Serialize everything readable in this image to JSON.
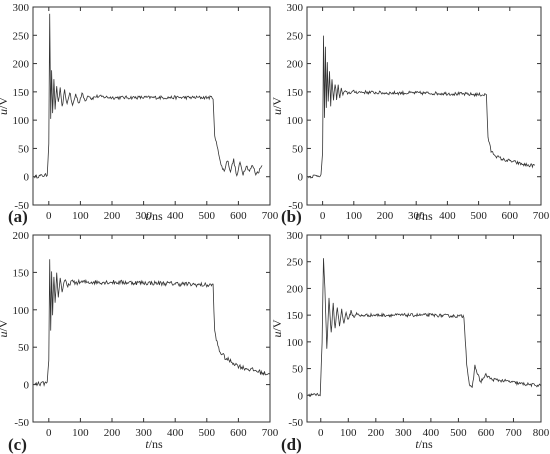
{
  "figure": {
    "panels": [
      {
        "label": "(a)",
        "xlabel_var": "t",
        "xlabel_unit": "/ns",
        "ylabel_var": "u",
        "ylabel_unit": "/V"
      },
      {
        "label": "(b)",
        "xlabel_var": "t",
        "xlabel_unit": "/ns",
        "ylabel_var": "u",
        "ylabel_unit": "/V"
      },
      {
        "label": "(c)",
        "xlabel_var": "t",
        "xlabel_unit": "/ns",
        "ylabel_var": "u",
        "ylabel_unit": "/V"
      },
      {
        "label": "(d)",
        "xlabel_var": "t",
        "xlabel_unit": "/ns",
        "ylabel_var": "u",
        "ylabel_unit": "/V"
      }
    ]
  },
  "chart_data": [
    {
      "type": "line",
      "panel": "(a)",
      "xlabel": "t/ns",
      "ylabel": "u/V",
      "xlim": [
        -50,
        700
      ],
      "ylim": [
        -50,
        300
      ],
      "xticks": [
        0,
        100,
        200,
        300,
        400,
        500,
        600,
        700
      ],
      "xtick_labels": [
        "0",
        "100",
        "200",
        "300",
        "400",
        "500",
        "600",
        "700"
      ],
      "yticks": [
        -50,
        0,
        50,
        100,
        150,
        200,
        250,
        300
      ],
      "ytick_labels": [
        "-50",
        "0",
        "50",
        "100",
        "150",
        "200",
        "250",
        "300"
      ],
      "grid": false,
      "line_color": "#333333",
      "series": [
        {
          "x": [
            -45,
            -5,
            0,
            3,
            6,
            9,
            12,
            16,
            20,
            25,
            30,
            36,
            42,
            50,
            58,
            66,
            75,
            85,
            95,
            105,
            115,
            125,
            135,
            150,
            200,
            300,
            400,
            500,
            520,
            525,
            535,
            545,
            555,
            565,
            575,
            585,
            595,
            605,
            615,
            625,
            635,
            645,
            655,
            665,
            675
          ],
          "y": [
            0,
            3,
            60,
            290,
            100,
            190,
            110,
            170,
            120,
            160,
            130,
            155,
            122,
            152,
            128,
            150,
            125,
            146,
            130,
            147,
            134,
            145,
            138,
            142,
            140,
            140,
            140,
            140,
            140,
            70,
            50,
            20,
            10,
            30,
            10,
            30,
            0,
            25,
            5,
            20,
            10,
            20,
            5,
            10,
            20
          ]
        }
      ]
    },
    {
      "type": "line",
      "panel": "(b)",
      "xlabel": "t/ns",
      "ylabel": "u/V",
      "xlim": [
        -50,
        700
      ],
      "ylim": [
        -50,
        300
      ],
      "xticks": [
        0,
        100,
        200,
        300,
        400,
        500,
        600,
        700
      ],
      "xtick_labels": [
        "0",
        "100",
        "200",
        "300",
        "400",
        "500",
        "600",
        "700"
      ],
      "yticks": [
        -50,
        0,
        50,
        100,
        150,
        200,
        250,
        300
      ],
      "ytick_labels": [
        "-50",
        "0",
        "50",
        "100",
        "150",
        "200",
        "250",
        "300"
      ],
      "grid": false,
      "line_color": "#333333",
      "series": [
        {
          "x": [
            -45,
            -5,
            0,
            3,
            6,
            9,
            12,
            15,
            18,
            22,
            26,
            30,
            35,
            40,
            45,
            50,
            55,
            60,
            65,
            70,
            80,
            100,
            200,
            300,
            400,
            500,
            525,
            530,
            540,
            550,
            560,
            580,
            600,
            620,
            640,
            660,
            680
          ],
          "y": [
            0,
            3,
            40,
            250,
            105,
            230,
            120,
            200,
            130,
            185,
            125,
            175,
            135,
            165,
            138,
            160,
            140,
            155,
            145,
            150,
            148,
            150,
            148,
            148,
            147,
            145,
            145,
            70,
            45,
            40,
            35,
            30,
            28,
            25,
            22,
            20,
            20
          ]
        }
      ]
    },
    {
      "type": "line",
      "panel": "(c)",
      "xlabel": "t/ns",
      "ylabel": "u/V",
      "xlim": [
        -50,
        700
      ],
      "ylim": [
        -50,
        200
      ],
      "xticks": [
        0,
        100,
        200,
        300,
        400,
        500,
        600,
        700
      ],
      "xtick_labels": [
        "0",
        "100",
        "200",
        "300",
        "400",
        "500",
        "600",
        "700"
      ],
      "yticks": [
        -50,
        0,
        50,
        100,
        150,
        200
      ],
      "ytick_labels": [
        "-50",
        "0",
        "50",
        "100",
        "150",
        "200"
      ],
      "grid": false,
      "line_color": "#333333",
      "series": [
        {
          "x": [
            -45,
            -5,
            0,
            3,
            6,
            9,
            12,
            16,
            20,
            25,
            30,
            36,
            42,
            50,
            60,
            70,
            80,
            100,
            200,
            300,
            400,
            500,
            520,
            525,
            530,
            540,
            550,
            560,
            580,
            600,
            620,
            640,
            660,
            680,
            700
          ],
          "y": [
            0,
            2,
            30,
            165,
            70,
            150,
            95,
            145,
            110,
            148,
            118,
            142,
            125,
            140,
            130,
            138,
            136,
            137,
            137,
            136,
            135,
            133,
            133,
            70,
            60,
            45,
            40,
            35,
            30,
            25,
            22,
            20,
            18,
            15,
            15
          ]
        }
      ]
    },
    {
      "type": "line",
      "panel": "(d)",
      "xlabel": "t/ns",
      "ylabel": "u/V",
      "xlim": [
        -50,
        800
      ],
      "ylim": [
        -50,
        300
      ],
      "xticks": [
        0,
        100,
        200,
        300,
        400,
        500,
        600,
        700,
        800
      ],
      "xtick_labels": [
        "0",
        "100",
        "200",
        "300",
        "400",
        "500",
        "600",
        "700",
        "800"
      ],
      "yticks": [
        -50,
        0,
        50,
        100,
        150,
        200,
        250,
        300
      ],
      "ytick_labels": [
        "-50",
        "0",
        "50",
        "100",
        "150",
        "200",
        "250",
        "300"
      ],
      "grid": false,
      "line_color": "#333333",
      "series": [
        {
          "x": [
            -45,
            -2,
            5,
            10,
            15,
            22,
            30,
            38,
            45,
            52,
            60,
            68,
            76,
            84,
            92,
            100,
            110,
            120,
            130,
            140,
            160,
            200,
            300,
            400,
            500,
            520,
            530,
            540,
            550,
            560,
            570,
            580,
            600,
            620,
            650,
            680,
            720,
            760,
            800
          ],
          "y": [
            0,
            2,
            100,
            258,
            200,
            90,
            180,
            115,
            170,
            125,
            165,
            130,
            160,
            135,
            155,
            140,
            158,
            145,
            155,
            148,
            150,
            150,
            150,
            150,
            148,
            148,
            60,
            20,
            12,
            55,
            40,
            25,
            38,
            30,
            28,
            26,
            22,
            20,
            18
          ]
        }
      ]
    }
  ]
}
